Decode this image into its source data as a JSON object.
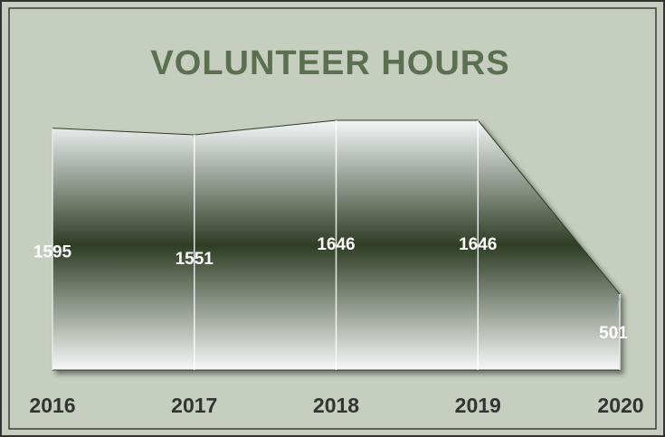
{
  "chart_data": {
    "type": "area",
    "title": "VOLUNTEER HOURS",
    "categories": [
      "2016",
      "2017",
      "2018",
      "2019",
      "2020"
    ],
    "values": [
      1595,
      1551,
      1646,
      1646,
      501
    ],
    "ylim": [
      0,
      1700
    ],
    "color": "#2e3d24"
  }
}
